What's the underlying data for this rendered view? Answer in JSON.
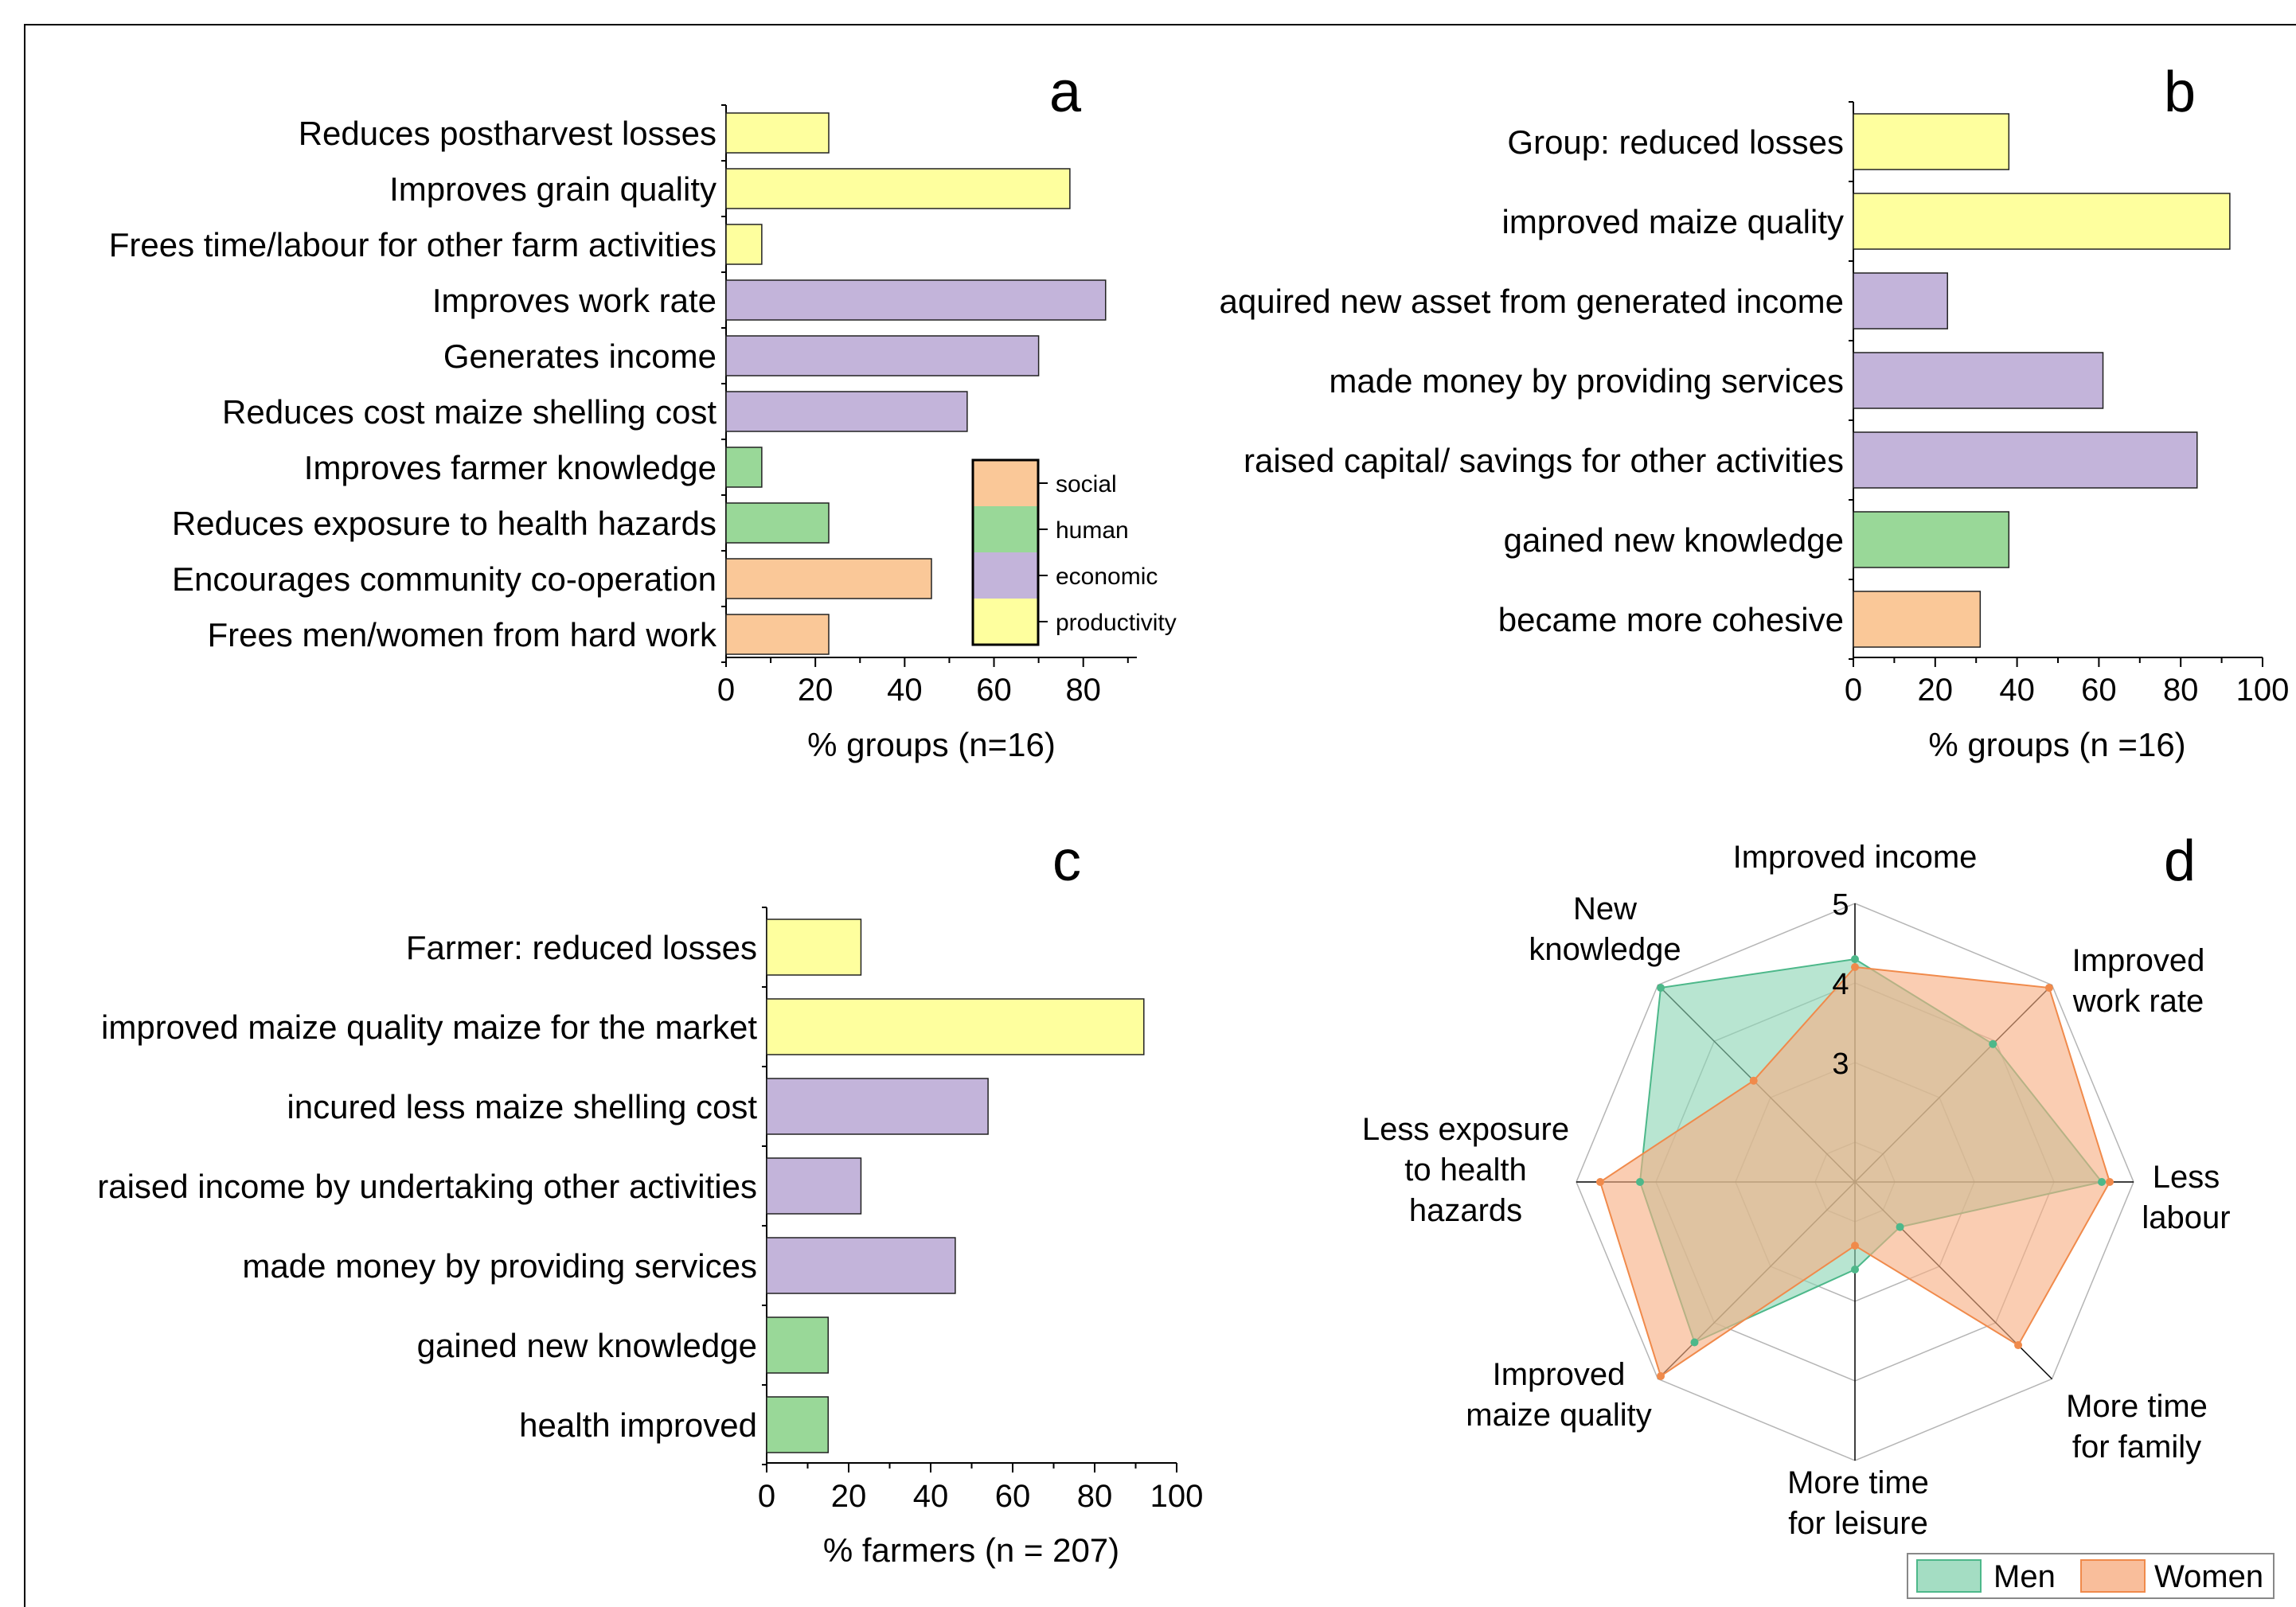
{
  "colors": {
    "social": "#fac898",
    "human": "#99d898",
    "economic": "#c3b4da",
    "productivity": "#feff9e",
    "men_fill": "#8dd5b4",
    "men_line": "#4db88a",
    "women_fill": "#f7ae82",
    "women_line": "#f08a4b"
  },
  "chart_data": [
    {
      "panel_label": "a",
      "type": "bar",
      "orientation": "horizontal",
      "categories": [
        "Reduces postharvest losses",
        "Improves grain quality",
        "Frees time/labour for other farm activities",
        "Improves work rate",
        "Generates income",
        "Reduces cost maize shelling cost",
        "Improves farmer knowledge",
        "Reduces exposure to health hazards",
        "Encourages community co-operation",
        "Frees men/women from hard work"
      ],
      "values": [
        23,
        77,
        8,
        85,
        70,
        54,
        8,
        23,
        46,
        23
      ],
      "groups": [
        "productivity",
        "productivity",
        "productivity",
        "economic",
        "economic",
        "economic",
        "human",
        "human",
        "social",
        "social"
      ],
      "xlabel": "% groups (n=16)",
      "xticks": [
        0,
        20,
        40,
        60,
        80
      ],
      "xlim": [
        0,
        92
      ],
      "legend": {
        "placement": "bottom-right",
        "entries": [
          {
            "key": "social",
            "label": "social"
          },
          {
            "key": "human",
            "label": "human"
          },
          {
            "key": "economic",
            "label": "economic"
          },
          {
            "key": "productivity",
            "label": "productivity"
          }
        ]
      }
    },
    {
      "panel_label": "b",
      "type": "bar",
      "orientation": "horizontal",
      "categories": [
        "Group: reduced losses",
        "improved maize quality",
        "aquired new asset from generated income",
        "made money by providing services",
        "raised capital/ savings for other activities",
        "gained new knowledge",
        "became more cohesive"
      ],
      "values": [
        38,
        92,
        23,
        61,
        84,
        38,
        31
      ],
      "groups": [
        "productivity",
        "productivity",
        "economic",
        "economic",
        "economic",
        "human",
        "social"
      ],
      "xlabel": "% groups (n =16)",
      "xticks": [
        0,
        20,
        40,
        60,
        80,
        100
      ],
      "xlim": [
        0,
        100
      ]
    },
    {
      "panel_label": "c",
      "type": "bar",
      "orientation": "horizontal",
      "categories": [
        "Farmer: reduced losses",
        "improved maize quality maize for the market",
        "incured less maize shelling cost",
        "raised income by undertaking other activities",
        "made money by providing services",
        "gained new knowledge",
        "health improved"
      ],
      "values": [
        23,
        92,
        54,
        23,
        46,
        15,
        15
      ],
      "groups": [
        "productivity",
        "productivity",
        "economic",
        "economic",
        "economic",
        "human",
        "human"
      ],
      "xlabel": "% farmers (n = 207)",
      "xticks": [
        0,
        20,
        40,
        60,
        80,
        100
      ],
      "xlim": [
        0,
        100
      ]
    },
    {
      "panel_label": "d",
      "type": "radar",
      "axes": [
        {
          "lines": [
            "Improved income"
          ]
        },
        {
          "lines": [
            "Improved",
            "work rate"
          ]
        },
        {
          "lines": [
            "Less",
            "labour"
          ]
        },
        {
          "lines": [
            "More time",
            "for family"
          ]
        },
        {
          "lines": [
            "More time",
            "for leisure"
          ]
        },
        {
          "lines": [
            "Improved",
            "maize quality"
          ]
        },
        {
          "lines": [
            "Less exposure",
            "to health",
            "hazards"
          ]
        },
        {
          "lines": [
            "New",
            "knowledge"
          ]
        }
      ],
      "rlim": [
        1.5,
        5
      ],
      "rticks": [
        3,
        4,
        5
      ],
      "series": [
        {
          "name": "Men",
          "key": "men",
          "values": [
            4.3,
            3.95,
            4.6,
            2.3,
            2.6,
            4.35,
            4.2,
            4.95
          ]
        },
        {
          "name": "Women",
          "key": "women",
          "values": [
            4.2,
            4.95,
            4.7,
            4.4,
            2.3,
            4.95,
            4.7,
            3.3
          ]
        }
      ],
      "legend": {
        "placement": "bottom-right"
      }
    }
  ]
}
